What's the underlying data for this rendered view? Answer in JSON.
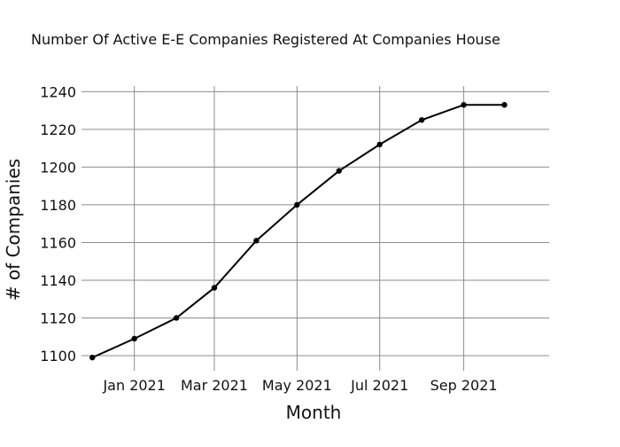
{
  "chart_data": {
    "type": "line",
    "title": "Number Of Active E-E Companies Registered At Companies House",
    "xlabel": "Month",
    "ylabel": "# of Companies",
    "x": [
      "2020-12-01",
      "2021-01-01",
      "2021-02-01",
      "2021-03-01",
      "2021-04-01",
      "2021-05-01",
      "2021-06-01",
      "2021-07-01",
      "2021-08-01",
      "2021-09-01",
      "2021-10-01"
    ],
    "y": [
      1099,
      1109,
      1120,
      1136,
      1161,
      1180,
      1198,
      1212,
      1225,
      1233,
      1233
    ],
    "x_ticks": [
      {
        "date": "2021-01-01",
        "label": "Jan 2021"
      },
      {
        "date": "2021-03-01",
        "label": "Mar 2021"
      },
      {
        "date": "2021-05-01",
        "label": "May 2021"
      },
      {
        "date": "2021-07-01",
        "label": "Jul 2021"
      },
      {
        "date": "2021-09-01",
        "label": "Sep 2021"
      }
    ],
    "y_ticks": [
      1100,
      1120,
      1140,
      1160,
      1180,
      1200,
      1220,
      1240
    ],
    "xlim": [
      "2020-11-23",
      "2021-11-03"
    ],
    "ylim": [
      1092,
      1243
    ],
    "grid": true,
    "legend": "none",
    "colors": {
      "line": "#000000",
      "grid": "#8c8c8c",
      "text": "#111111"
    }
  }
}
